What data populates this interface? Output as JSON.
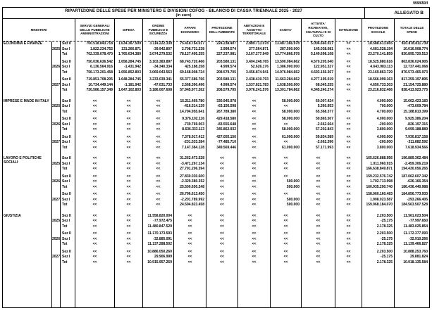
{
  "page_ref": "999/650/I",
  "header": {
    "title": "RIPARTIZIONE DELLE SPESE PER MINISTERO E DIVISIONI COFOG - BILANCIO DI CASSA TRIENNALE 2025 - 2027",
    "subtitle": "(in euro)",
    "annex": "ALLEGATO B"
  },
  "columns": [
    "MINISTERI",
    "SERVIZI GENERALI DELLE PUBBLICHE AMMINISTRAZIONI",
    "DIFESA",
    "ORDINE PUBBLICO E SICUREZZA",
    "AFFARI ECONOMICI",
    "PROTEZIONE DELL'AMBIENTE",
    "ABITAZIONI E ASSETTO TERRITORIALE",
    "SANITA'",
    "ATTIVITA' RICREATIVE, CULTURALI E DI CULTO",
    "ISTRUZIONE",
    "PROTEZIONE SOCIALE",
    "TOTALE DELLE SPESE"
  ],
  "row_labels": [
    "Sez II",
    "Sez I",
    "Tot"
  ],
  "placeholder": "<<",
  "ministries": [
    {
      "name": "ECONOMIA E FINANZE",
      "groups": [
        {
          "year": "2025",
          "rows": [
            [
              "700.518.843.718",
              "1.634.367.509",
              "3.114.222.339",
              "75.418.764.017",
              "224.238.407",
              "2.889.713.078",
              "13.487.366.978",
              "5.004.660.027",
              "<<",
              "18.588.613.665",
              "820.878.811.739"
            ],
            [
              "1.822.234.752",
              "131.266.871",
              "-39.942.807",
              "2.708.731.238",
              "2.999.574",
              "277.564.871",
              "287.500.000",
              "145.038.081",
              "<<",
              "4.681.528.194",
              "10.016.908.774"
            ],
            [
              "702.339.078.470",
              "1.765.634.380",
              "3.074.279.532",
              "78.127.495.255",
              "227.237.981",
              "3.167.277.949",
              "13.774.866.978",
              "5.149.698.108",
              "<<",
              "23.270.141.859",
              "830.895.720.513"
            ]
          ]
        },
        {
          "year": "2026",
          "rows": [
            [
              "750.036.636.542",
              "1.658.284.745",
              "3.103.383.897",
              "68.743.720.466",
              "203.580.131",
              "3.404.248.765",
              "13.590.084.662",
              "4.570.205.040",
              "<<",
              "18.525.880.616",
              "863.836.024.905"
            ],
            [
              "6.136.564.916",
              "-1.431.942",
              "-34.340.334",
              "425.188.258",
              "4.999.574",
              "52.626.176",
              "1.386.900.000",
              "122.951.327",
              "<<",
              "4.643.983.113",
              "12.737.441.068"
            ],
            [
              "756.173.201.458",
              "1.656.852.803",
              "3.069.043.563",
              "69.168.908.724",
              "208.579.705",
              "3.456.874.941",
              "14.976.984.662",
              "4.693.156.367",
              "<<",
              "23.169.863.729",
              "876.573.465.973"
            ]
          ]
        },
        {
          "year": "2027",
          "rows": [
            [
              "719.851.708.205",
              "1.648.284.745",
              "3.233.039.341",
              "55.377.586.766",
              "203.580.131",
              "2.438.419.793",
              "11.663.284.662",
              "4.277.195.019",
              "<<",
              "18.566.099.163",
              "817.259.197.895"
            ],
            [
              "10.734.449.144",
              "-1.181.942",
              "-47.031.733",
              "2.568.390.496",
              "4.999.574",
              "1.537.821.783",
              "1.638.500.000",
              "68.045.255",
              "<<",
              "4.650.733.303",
              "21.154.725.880"
            ],
            [
              "730.586.157.349",
              "1.647.102.803",
              "3.186.007.608",
              "57.945.977.262",
              "208.579.705",
              "3.976.241.576",
              "13.301.784.662",
              "4.345.240.274",
              "<<",
              "23.216.832.466",
              "838.413.923.775"
            ]
          ]
        }
      ]
    },
    {
      "name": "IMPRESE E MADE IN ITALY",
      "groups": [
        {
          "year": "2025",
          "rows": [
            [
              "<<",
              "<<",
              "<<",
              "15.211.469.780",
              "330.945.978",
              "<<",
              "58.000.000",
              "60.007.424",
              "<<",
              "4.000.000",
              "15.662.423.183"
            ],
            [
              "<<",
              "<<",
              "<<",
              "-416.514.139",
              "-63.156.598",
              "<<",
              "<<",
              "5.360.953",
              "<<",
              "700.000",
              "-473.609.784"
            ],
            [
              "<<",
              "<<",
              "<<",
              "14.794.955.641",
              "267.789.380",
              "<<",
              "58.000.000",
              "65.368.377",
              "<<",
              "4.700.000",
              "15.188.813.399"
            ]
          ]
        },
        {
          "year": "2026",
          "rows": [
            [
              "<<",
              "<<",
              "<<",
              "9.376.102.116",
              "429.418.580",
              "<<",
              "58.000.000",
              "59.865.507",
              "<<",
              "4.000.000",
              "9.925.386.204"
            ],
            [
              "<<",
              "<<",
              "<<",
              "-739.769.003",
              "-83.555.648",
              "<<",
              "<<",
              "-2.662.664",
              "<<",
              "-200.000",
              "-826.197.315"
            ],
            [
              "<<",
              "<<",
              "<<",
              "8.636.333.113",
              "345.862.932",
              "<<",
              "58.000.000",
              "57.202.843",
              "<<",
              "3.800.000",
              "9.099.188.889"
            ]
          ]
        },
        {
          "year": "2027",
          "rows": [
            [
              "<<",
              "<<",
              "<<",
              "7.378.917.412",
              "427.055.156",
              "<<",
              "61.000.000",
              "59.834.589",
              "<<",
              "4.000.000",
              "7.930.817.158"
            ],
            [
              "<<",
              "<<",
              "<<",
              "-231.533.284",
              "-77.485.710",
              "<<",
              "<<",
              "-2.662.596",
              "<<",
              "-200.000",
              "-311.882.592"
            ],
            [
              "<<",
              "<<",
              "<<",
              "7.147.384.128",
              "349.569.446",
              "<<",
              "61.000.000",
              "57.171.993",
              "<<",
              "3.800.000",
              "7.618.934.566"
            ]
          ]
        }
      ]
    },
    {
      "name": "LAVORO E POLITICHE SOCIALI",
      "groups": [
        {
          "year": "2025",
          "rows": [
            [
              "<<",
              "<<",
              "<<",
              "31.262.473.528",
              "<<",
              "<<",
              "<<",
              "<<",
              "<<",
              "165.626.888.956",
              "196.889.362.484"
            ],
            [
              "<<",
              "<<",
              "<<",
              "-3.471.267.134",
              "<<",
              "<<",
              "<<",
              "<<",
              "<<",
              "1.011.960.915",
              "-2.459.306.219"
            ],
            [
              "<<",
              "<<",
              "<<",
              "27.791.206.394",
              "<<",
              "<<",
              "<<",
              "<<",
              "<<",
              "166.638.849.871",
              "194.430.056.265"
            ]
          ]
        },
        {
          "year": "2026",
          "rows": [
            [
              "<<",
              "<<",
              "<<",
              "27.830.030.600",
              "<<",
              "<<",
              "<<",
              "<<",
              "<<",
              "159.232.576.742",
              "187.062.607.342"
            ],
            [
              "<<",
              "<<",
              "<<",
              "-2.329.380.352",
              "<<",
              "<<",
              "500.000",
              "<<",
              "<<",
              "1.702.713.998",
              "-626.166.354"
            ],
            [
              "<<",
              "<<",
              "<<",
              "25.500.650.248",
              "<<",
              "<<",
              "500.000",
              "<<",
              "<<",
              "160.935.290.740",
              "186.436.440.988"
            ]
          ]
        },
        {
          "year": "2027",
          "rows": [
            [
              "<<",
              "<<",
              "<<",
              "26.796.613.450",
              "<<",
              "<<",
              "<<",
              "<<",
              "<<",
              "158.060.160.483",
              "184.856.773.933"
            ],
            [
              "<<",
              "<<",
              "<<",
              "-2.201.789.992",
              "<<",
              "<<",
              "500.000",
              "<<",
              "<<",
              "1.908.023.587",
              "-293.266.405"
            ],
            [
              "<<",
              "<<",
              "<<",
              "24.594.823.458",
              "<<",
              "<<",
              "500.000",
              "<<",
              "<<",
              "159.968.184.070",
              "184.563.507.528"
            ]
          ]
        }
      ]
    },
    {
      "name": "GIUSTIZIA",
      "groups": [
        {
          "year": "2025",
          "rows": [
            [
              "<<",
              "<<",
              "11.558.820.004",
              "<<",
              "<<",
              "<<",
              "<<",
              "<<",
              "<<",
              "2.203.500",
              "11.561.023.504"
            ],
            [
              "<<",
              "<<",
              "-77.972.475",
              "<<",
              "<<",
              "<<",
              "<<",
              "<<",
              "<<",
              "-25.175",
              "-77.997.650"
            ],
            [
              "<<",
              "<<",
              "11.480.847.529",
              "<<",
              "<<",
              "<<",
              "<<",
              "<<",
              "<<",
              "2.178.325",
              "11.483.025.854"
            ]
          ]
        },
        {
          "year": "2026",
          "rows": [
            [
              "<<",
              "<<",
              "11.170.173.593",
              "<<",
              "<<",
              "<<",
              "<<",
              "<<",
              "<<",
              "2.203.500",
              "11.172.377.093"
            ],
            [
              "<<",
              "<<",
              "-32.885.091",
              "<<",
              "<<",
              "<<",
              "<<",
              "<<",
              "<<",
              "-25.175",
              "-32.910.266"
            ],
            [
              "<<",
              "<<",
              "11.137.288.502",
              "<<",
              "<<",
              "<<",
              "<<",
              "<<",
              "<<",
              "2.178.325",
              "11.139.466.827"
            ]
          ]
        },
        {
          "year": "2027",
          "rows": [
            [
              "<<",
              "<<",
              "10.886.050.260",
              "<<",
              "<<",
              "<<",
              "<<",
              "<<",
              "<<",
              "2.203.500",
              "10.888.253.760"
            ],
            [
              "<<",
              "<<",
              "29.906.999",
              "<<",
              "<<",
              "<<",
              "<<",
              "<<",
              "<<",
              "-25.175",
              "29.881.824"
            ],
            [
              "<<",
              "<<",
              "10.915.957.259",
              "<<",
              "<<",
              "<<",
              "<<",
              "<<",
              "<<",
              "2.178.325",
              "10.918.135.584"
            ]
          ]
        }
      ]
    }
  ]
}
